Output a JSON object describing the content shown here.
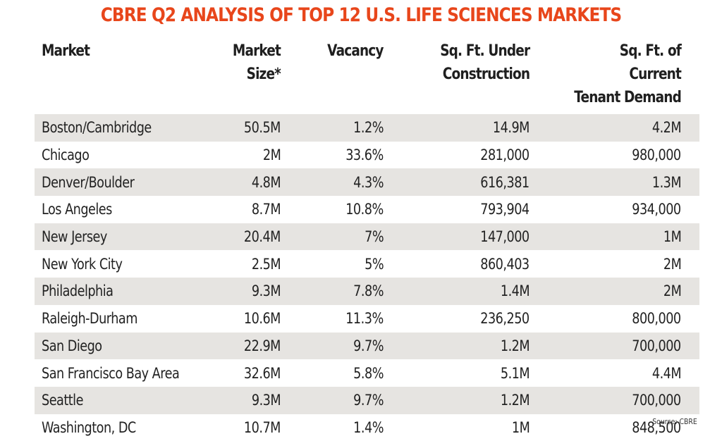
{
  "title": "CBRE Q2 ANALYSIS OF TOP 12 U.S. LIFE SCIENCES MARKETS",
  "columns": [
    {
      "line1": "Market",
      "line2": ""
    },
    {
      "line1": "Market Size*",
      "line2": ""
    },
    {
      "line1": "Vacancy",
      "line2": ""
    },
    {
      "line1": "Sq. Ft. Under",
      "line2": "Construction"
    },
    {
      "line1": "Sq. Ft. of Current",
      "line2": "Tenant Demand"
    }
  ],
  "rows": [
    [
      "Boston/Cambridge",
      "50.5M",
      "1.2%",
      "14.9M",
      "4.2M"
    ],
    [
      "Chicago",
      "2M",
      "33.6%",
      "281,000",
      "980,000"
    ],
    [
      "Denver/Boulder",
      "4.8M",
      "4.3%",
      "616,381",
      "1.3M"
    ],
    [
      "Los Angeles",
      "8.7M",
      "10.8%",
      "793,904",
      "934,000"
    ],
    [
      "New Jersey",
      "20.4M",
      "7%",
      "147,000",
      "1M"
    ],
    [
      "New York City",
      "2.5M",
      "5%",
      "860,403",
      "2M"
    ],
    [
      "Philadelphia",
      "9.3M",
      "7.8%",
      "1.4M",
      "2M"
    ],
    [
      "Raleigh-Durham",
      "10.6M",
      "11.3%",
      "236,250",
      "800,000"
    ],
    [
      "San Diego",
      "22.9M",
      "9.7%",
      "1.2M",
      "700,000"
    ],
    [
      "San Francisco Bay Area",
      "32.6M",
      "5.8%",
      "5.1M",
      "4.4M"
    ],
    [
      "Seattle",
      "9.3M",
      "9.7%",
      "1.2M",
      "700,000"
    ],
    [
      "Washington, DC",
      "10.7M",
      "1.4%",
      "1M",
      "848,500"
    ]
  ],
  "source": "Source: CBRE",
  "colors": {
    "title": "#e8461b",
    "stripe": "#e6e4e1",
    "text": "#222222"
  }
}
